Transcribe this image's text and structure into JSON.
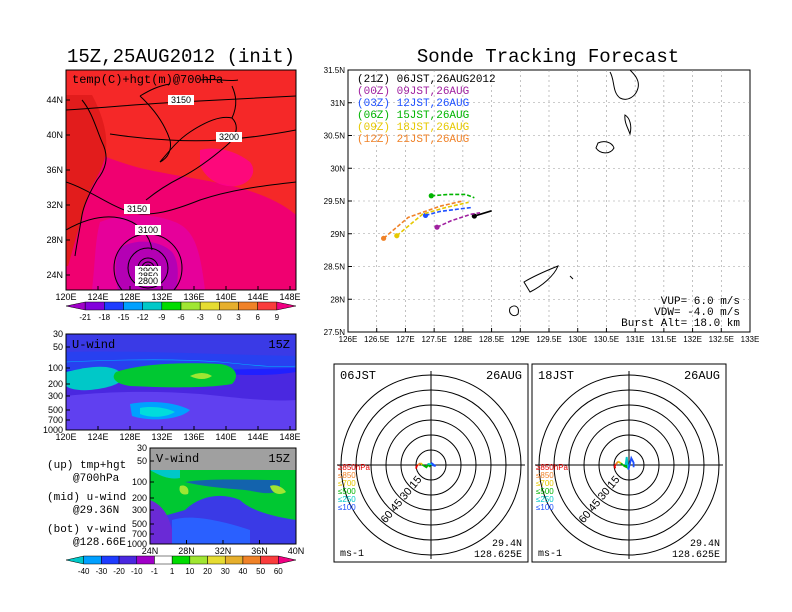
{
  "chart_data": [
    {
      "type": "heatmap",
      "panel": "upper-map",
      "title": "15Z,25AUG2012 (init)",
      "label": "temp(C)+hgt(m)@700hPa",
      "x_ticks": [
        "120E",
        "124E",
        "128E",
        "132E",
        "136E",
        "140E",
        "144E",
        "148E"
      ],
      "y_ticks": [
        "24N",
        "28N",
        "32N",
        "36N",
        "40N",
        "44N"
      ],
      "contour_labels": [
        "3150",
        "3200",
        "3150",
        "3100",
        "2900",
        "2850",
        "2800"
      ],
      "colorbar": [
        "-21",
        "-18",
        "-15",
        "-12",
        "-9",
        "-6",
        "-3",
        "0",
        "3",
        "6",
        "9"
      ],
      "colorbar_colors": [
        "#a000c8",
        "#8200dc",
        "#1e3cff",
        "#00a0ff",
        "#00c8c8",
        "#00dc00",
        "#a0e632",
        "#e6dc32",
        "#e6af2d",
        "#f08228",
        "#fa3c3c",
        "#f00082"
      ]
    },
    {
      "type": "heatmap",
      "panel": "u-wind",
      "label": "U-wind",
      "time": "15Z",
      "y_ticks": [
        "30",
        "50",
        "100",
        "200",
        "300",
        "500",
        "700",
        "1000"
      ],
      "x_ticks": [
        "120E",
        "124E",
        "128E",
        "132E",
        "136E",
        "140E",
        "144E",
        "148E"
      ]
    },
    {
      "type": "heatmap",
      "panel": "v-wind",
      "label": "V-wind",
      "time": "15Z",
      "y_ticks": [
        "30",
        "50",
        "100",
        "200",
        "300",
        "500",
        "700",
        "1000"
      ],
      "x_ticks": [
        "24N",
        "28N",
        "32N",
        "36N",
        "40N"
      ],
      "colorbar": [
        "-40",
        "-30",
        "-20",
        "-10",
        "-1",
        "1",
        "10",
        "20",
        "30",
        "40",
        "50",
        "60"
      ]
    },
    {
      "type": "line",
      "panel": "sonde-tracking",
      "title": "Sonde Tracking Forecast",
      "x_ticks": [
        "126E",
        "126.5E",
        "127E",
        "127.5E",
        "128E",
        "128.5E",
        "129E",
        "129.5E",
        "130E",
        "130.5E",
        "131E",
        "131.5E",
        "132E",
        "132.5E",
        "133E"
      ],
      "y_ticks": [
        "27.5N",
        "28N",
        "28.5N",
        "29N",
        "29.5N",
        "30N",
        "30.5N",
        "31N",
        "31.5N"
      ],
      "xlim": [
        126,
        133
      ],
      "ylim": [
        27.5,
        31.5
      ],
      "series": [
        {
          "name": "(21Z)  06JST,26AUG2012",
          "color": "#000000",
          "x": [
            128.2,
            128.5
          ],
          "y": [
            29.27,
            29.35
          ]
        },
        {
          "name": "(00Z)  09JST,26AUG",
          "color": "#a020a0",
          "x": [
            127.55,
            127.8,
            128.15,
            128.3
          ],
          "y": [
            29.1,
            29.2,
            29.3,
            29.32
          ]
        },
        {
          "name": "(03Z)  12JST,26AUG",
          "color": "#1e50ff",
          "x": [
            127.35,
            127.6,
            127.95,
            128.15
          ],
          "y": [
            29.28,
            29.34,
            29.38,
            29.4
          ]
        },
        {
          "name": "(06Z)  15JST,26AUG",
          "color": "#00b400",
          "x": [
            127.45,
            127.75,
            128.05,
            128.2
          ],
          "y": [
            29.58,
            29.6,
            29.6,
            29.55
          ]
        },
        {
          "name": "(09Z)  18JST,26AUG",
          "color": "#e6c800",
          "x": [
            126.85,
            127.3,
            127.7,
            128.1
          ],
          "y": [
            28.97,
            29.3,
            29.4,
            29.48
          ]
        },
        {
          "name": "(12Z)  21JST,26AUG",
          "color": "#f08228",
          "x": [
            126.62,
            127.05,
            127.6,
            128.0
          ],
          "y": [
            28.93,
            29.25,
            29.42,
            29.5
          ]
        }
      ],
      "annotations": [
        "VUP=  6.0  m/s",
        "VDW= -4.0  m/s",
        "Burst Alt=  18.0  km"
      ]
    },
    {
      "type": "line",
      "panel": "hodograph-06JST",
      "title_left": "06JST",
      "title_right": "26AUG",
      "ring_labels": [
        "15",
        "30",
        "45",
        "60"
      ],
      "location": [
        "29.4N",
        "128.625E"
      ],
      "units": "ms-1",
      "legend": [
        "≥850hPa",
        "≤850",
        "≤700",
        "≤500",
        "≤250",
        "≤100"
      ],
      "legend_colors": [
        "#e60000",
        "#f08228",
        "#e6c800",
        "#00b400",
        "#00c8c8",
        "#1e50ff"
      ],
      "segments": [
        {
          "color": "#e60000",
          "u": [
            -13,
            -12.5,
            -11.5
          ],
          "v": [
            -3.2,
            -1,
            0
          ]
        },
        {
          "color": "#f08228",
          "u": [
            -11.5,
            -9
          ],
          "v": [
            0,
            1.6
          ]
        },
        {
          "color": "#e6c800",
          "u": [
            -9,
            -7.5
          ],
          "v": [
            1.6,
            0.2
          ]
        },
        {
          "color": "#00b400",
          "u": [
            -7.5,
            -4,
            -2.5,
            -0.5,
            -3
          ],
          "v": [
            0.2,
            -2,
            0,
            -1.5,
            1
          ]
        },
        {
          "color": "#00c8c8",
          "u": [
            -3,
            2
          ],
          "v": [
            1,
            0.5
          ]
        },
        {
          "color": "#1e50ff",
          "u": [
            2,
            0,
            4,
            1
          ],
          "v": [
            0.5,
            2,
            -1,
            0
          ]
        }
      ]
    },
    {
      "type": "line",
      "panel": "hodograph-18JST",
      "title_left": "18JST",
      "title_right": "26AUG",
      "ring_labels": [
        "15",
        "30",
        "45",
        "60"
      ],
      "location": [
        "29.4N",
        "128.625E"
      ],
      "units": "ms-1",
      "legend": [
        "≥850hPa",
        "≤850",
        "≤700",
        "≤500",
        "≤250",
        "≤100"
      ],
      "legend_colors": [
        "#e60000",
        "#f08228",
        "#e6c800",
        "#00b400",
        "#00c8c8",
        "#1e50ff"
      ],
      "segments": [
        {
          "color": "#e60000",
          "u": [
            -12,
            -12.5,
            -11.5
          ],
          "v": [
            -3,
            -1,
            0.5
          ]
        },
        {
          "color": "#f08228",
          "u": [
            -11.5,
            -9.5
          ],
          "v": [
            0.5,
            3
          ]
        },
        {
          "color": "#e6c800",
          "u": [
            -9.5,
            -7
          ],
          "v": [
            3,
            1.5
          ]
        },
        {
          "color": "#00b400",
          "u": [
            -7,
            -4,
            -2,
            -3
          ],
          "v": [
            1.5,
            -1,
            -2,
            0
          ]
        },
        {
          "color": "#00c8c8",
          "u": [
            -3,
            -2,
            -0.5
          ],
          "v": [
            0,
            7,
            -4
          ]
        },
        {
          "color": "#1e50ff",
          "u": [
            -0.5,
            2,
            4,
            4
          ],
          "v": [
            -4,
            6,
            2,
            -2
          ]
        }
      ]
    }
  ],
  "notes": {
    "up": "(up)  tmp+hgt",
    "up2": "@700hPa",
    "mid": "(mid)  u-wind",
    "mid2": "@29.36N",
    "bot": "(bot)  v-wind",
    "bot2": "@128.66E"
  }
}
